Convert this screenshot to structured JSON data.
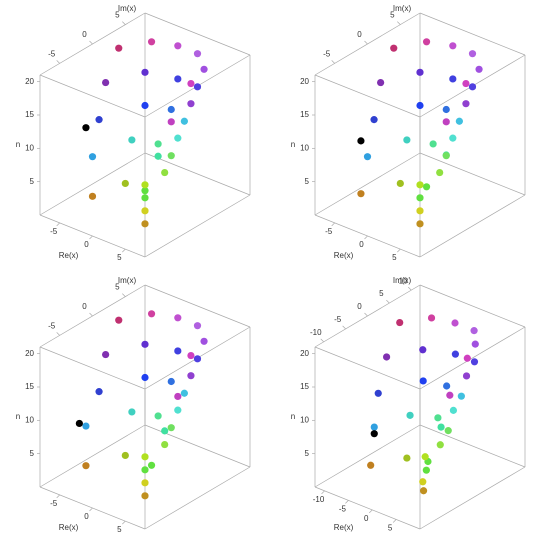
{
  "chart_data": [
    {
      "type": "scatter3d",
      "x_label": "Re(x)",
      "y_label": "Im(x)",
      "z_label": "n",
      "xlim": [
        -8,
        8
      ],
      "ylim": [
        -8,
        8
      ],
      "zlim": [
        0,
        21
      ],
      "xticks": [
        -5,
        0,
        5
      ],
      "yticks": [
        -5,
        0,
        5
      ],
      "zticks": [
        5,
        10,
        15,
        20
      ],
      "x": [
        -6,
        -4,
        -1,
        2,
        5,
        6,
        -6,
        -4,
        0,
        3,
        5,
        6,
        -5,
        -3,
        0,
        3,
        5,
        6,
        -4,
        -3,
        0,
        3,
        5,
        6,
        -2,
        -1,
        1,
        3,
        5,
        7,
        -7
      ],
      "y": [
        2,
        5,
        6,
        6,
        4,
        1,
        0,
        4,
        5,
        5,
        2,
        -2,
        -2,
        3,
        4,
        3,
        0,
        -4,
        -4,
        1,
        2,
        1,
        -2,
        -6,
        -6,
        -2,
        -1,
        -3,
        -5,
        -7,
        -2
      ],
      "z": [
        20,
        20,
        20,
        20,
        20,
        20,
        16,
        16,
        16,
        16,
        16,
        16,
        12,
        12,
        12,
        12,
        12,
        12,
        8,
        8,
        8,
        8,
        8,
        8,
        4,
        4,
        4,
        4,
        4,
        4,
        10
      ],
      "colors": [
        "#c03070",
        "#d040a0",
        "#c050d0",
        "#b060e0",
        "#a050e0",
        "#d040c0",
        "#8030b0",
        "#6030d0",
        "#4040e0",
        "#5040e0",
        "#9040d0",
        "#c040c0",
        "#3040d0",
        "#2040f0",
        "#3070e0",
        "#40c0e0",
        "#50e0d0",
        "#40e0a0",
        "#30a0e0",
        "#40d0c0",
        "#50e090",
        "#70e060",
        "#90e040",
        "#60e040",
        "#c08020",
        "#a0c020",
        "#b0e020",
        "#60e040",
        "#d0d020",
        "#c09020",
        "#000000"
      ]
    },
    {
      "type": "scatter3d",
      "x_label": "Re(x)",
      "y_label": "Im(x)",
      "z_label": "n",
      "xlim": [
        -8,
        8
      ],
      "ylim": [
        -8,
        8
      ],
      "zlim": [
        0,
        21
      ],
      "xticks": [
        -5,
        0,
        5
      ],
      "yticks": [
        -5,
        0,
        5
      ],
      "zticks": [
        5,
        10,
        15,
        20
      ],
      "x": [
        -6,
        -4,
        -1,
        2,
        5,
        6,
        -6,
        -4,
        0,
        3,
        5,
        6,
        -5,
        -3,
        0,
        3,
        5,
        7,
        -4,
        -3,
        0,
        3,
        5,
        6,
        -3,
        -1,
        1,
        3,
        5,
        7,
        -6
      ],
      "y": [
        2,
        5,
        6,
        6,
        4,
        1,
        0,
        4,
        5,
        5,
        2,
        -2,
        -2,
        3,
        4,
        3,
        0,
        -3,
        -4,
        1,
        2,
        1,
        -2,
        -5,
        -6,
        -2,
        -1,
        -3,
        -5,
        -7,
        -3
      ],
      "z": [
        20,
        20,
        20,
        20,
        20,
        20,
        16,
        16,
        16,
        16,
        16,
        16,
        12,
        12,
        12,
        12,
        12,
        12,
        8,
        8,
        8,
        8,
        8,
        8,
        4,
        4,
        4,
        4,
        4,
        4,
        9
      ],
      "colors": [
        "#c03070",
        "#d040a0",
        "#c050d0",
        "#b060e0",
        "#a050e0",
        "#d040c0",
        "#8030b0",
        "#6030d0",
        "#4040e0",
        "#5040e0",
        "#9040d0",
        "#c040c0",
        "#3040d0",
        "#2040f0",
        "#3070e0",
        "#40c0e0",
        "#50e0d0",
        "#40e0a0",
        "#30a0e0",
        "#40d0c0",
        "#50e090",
        "#70e060",
        "#90e040",
        "#60e040",
        "#c08020",
        "#a0c020",
        "#b0e020",
        "#60e040",
        "#d0d020",
        "#c09020",
        "#000000"
      ]
    },
    {
      "type": "scatter3d",
      "x_label": "Re(x)",
      "y_label": "Im(x)",
      "z_label": "n",
      "xlim": [
        -8,
        8
      ],
      "ylim": [
        -8,
        8
      ],
      "zlim": [
        0,
        21
      ],
      "xticks": [
        -5,
        0,
        5
      ],
      "yticks": [
        -5,
        0,
        5
      ],
      "zticks": [
        5,
        10,
        15,
        20
      ],
      "x": [
        -6,
        -4,
        -1,
        2,
        5,
        6,
        -6,
        -4,
        0,
        3,
        5,
        7,
        -5,
        -3,
        0,
        3,
        5,
        7,
        -5,
        -3,
        0,
        3,
        5,
        7,
        -3,
        -1,
        1,
        3,
        5,
        7,
        -6
      ],
      "y": [
        2,
        5,
        6,
        6,
        4,
        1,
        0,
        4,
        5,
        5,
        2,
        -2,
        -2,
        3,
        4,
        3,
        0,
        -4,
        -4,
        1,
        2,
        1,
        -2,
        -6,
        -6,
        -2,
        -1,
        -3,
        -5,
        -7,
        -4
      ],
      "z": [
        20,
        20,
        20,
        20,
        20,
        20,
        16,
        16,
        16,
        16,
        16,
        16,
        12,
        12,
        12,
        12,
        12,
        12,
        8,
        8,
        8,
        8,
        8,
        8,
        4,
        4,
        4,
        4,
        4,
        4,
        8
      ],
      "colors": [
        "#c03070",
        "#d040a0",
        "#c050d0",
        "#b060e0",
        "#a050e0",
        "#d040c0",
        "#8030b0",
        "#6030d0",
        "#4040e0",
        "#5040e0",
        "#9040d0",
        "#c040c0",
        "#3040d0",
        "#2040f0",
        "#3070e0",
        "#40c0e0",
        "#50e0d0",
        "#40e0a0",
        "#30a0e0",
        "#40d0c0",
        "#50e090",
        "#70e060",
        "#90e040",
        "#60e040",
        "#c08020",
        "#a0c020",
        "#b0e020",
        "#60e040",
        "#d0d020",
        "#c09020",
        "#000000"
      ]
    },
    {
      "type": "scatter3d",
      "x_label": "Re(x)",
      "y_label": "Im(x)",
      "z_label": "n",
      "xlim": [
        -12,
        10
      ],
      "ylim": [
        -12,
        12
      ],
      "zlim": [
        0,
        21
      ],
      "xticks": [
        -10,
        -5,
        0,
        5
      ],
      "yticks": [
        -10,
        -5,
        0,
        5,
        10
      ],
      "zticks": [
        5,
        10,
        15,
        20
      ],
      "x": [
        -8,
        -5,
        -1,
        3,
        6,
        8,
        -8,
        -5,
        0,
        4,
        6,
        8,
        -7,
        -4,
        0,
        4,
        6,
        8,
        -6,
        -4,
        0,
        4,
        6,
        8,
        -4,
        -1,
        1,
        4,
        6,
        8,
        -6
      ],
      "y": [
        3,
        7,
        8,
        8,
        5,
        1,
        0,
        5,
        7,
        7,
        3,
        -3,
        -3,
        4,
        5,
        4,
        0,
        -5,
        -5,
        1,
        3,
        1,
        -3,
        -8,
        -8,
        -3,
        -1,
        -4,
        -7,
        -9,
        -5
      ],
      "z": [
        20,
        20,
        20,
        20,
        20,
        20,
        16,
        16,
        16,
        16,
        16,
        16,
        12,
        12,
        12,
        12,
        12,
        12,
        8,
        8,
        8,
        8,
        8,
        8,
        4,
        4,
        4,
        4,
        4,
        4,
        7
      ],
      "colors": [
        "#c03070",
        "#d040a0",
        "#c050d0",
        "#b060e0",
        "#a050e0",
        "#d040c0",
        "#8030b0",
        "#6030d0",
        "#4040e0",
        "#5040e0",
        "#9040d0",
        "#c040c0",
        "#3040d0",
        "#2040f0",
        "#3070e0",
        "#40c0e0",
        "#50e0d0",
        "#40e0a0",
        "#30a0e0",
        "#40d0c0",
        "#50e090",
        "#70e060",
        "#90e040",
        "#60e040",
        "#c08020",
        "#a0c020",
        "#b0e020",
        "#60e040",
        "#d0d020",
        "#c09020",
        "#000000"
      ]
    }
  ]
}
